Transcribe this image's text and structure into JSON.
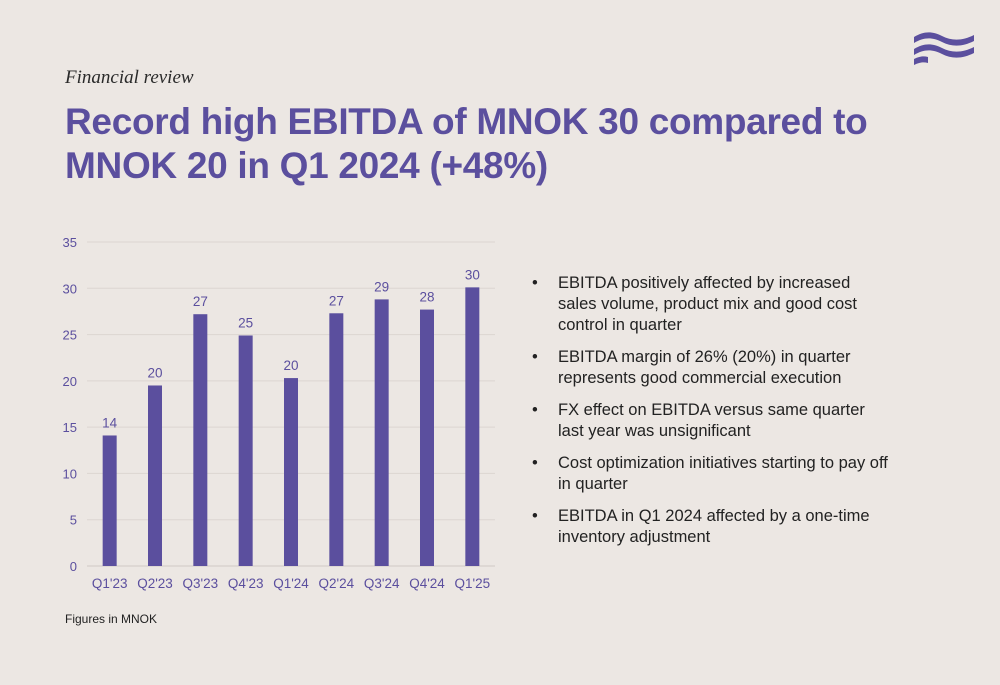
{
  "header": {
    "kicker": "Financial review",
    "title": "Record high EBITDA of MNOK 30 compared to MNOK 20 in Q1 2024 (+48%)"
  },
  "brand": {
    "logo_icon": "wave-stripes-icon",
    "accent_color": "#5b4f9e",
    "background_color": "#ece7e3"
  },
  "chart_data": {
    "type": "bar",
    "categories": [
      "Q1'23",
      "Q2'23",
      "Q3'23",
      "Q4'23",
      "Q1'24",
      "Q2'24",
      "Q3'24",
      "Q4'24",
      "Q1'25"
    ],
    "values": [
      14.1,
      19.5,
      27.2,
      24.9,
      20.3,
      27.3,
      28.8,
      27.7,
      30.1
    ],
    "data_labels": [
      "14",
      "20",
      "27",
      "25",
      "20",
      "27",
      "29",
      "28",
      "30"
    ],
    "yticks": [
      0,
      5,
      10,
      15,
      20,
      25,
      30,
      35
    ],
    "ylim": [
      0,
      35
    ],
    "grid": true,
    "bar_color": "#5b4f9e",
    "title": "",
    "xlabel": "",
    "ylabel": ""
  },
  "bullets": [
    "EBITDA positively affected by increased sales volume, product mix and good cost control in quarter",
    "EBITDA margin of 26% (20%) in quarter represents good commercial execution",
    "FX effect on EBITDA versus same quarter last year was unsignificant",
    "Cost optimization initiatives starting to pay off in quarter",
    "EBITDA in Q1 2024 affected by a one-time inventory adjustment"
  ],
  "bullet_glyph": "•",
  "footnote": "Figures in MNOK"
}
